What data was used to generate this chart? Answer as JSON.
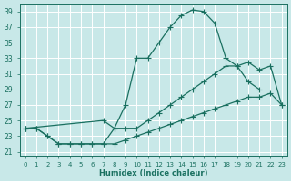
{
  "bg_color": "#c8e8e8",
  "line_color": "#1a7060",
  "xlabel": "Humidex (Indice chaleur)",
  "xlim": [
    -0.5,
    23.5
  ],
  "ylim": [
    20.5,
    40.0
  ],
  "xticks": [
    0,
    1,
    2,
    3,
    4,
    5,
    6,
    7,
    8,
    9,
    10,
    11,
    12,
    13,
    14,
    15,
    16,
    17,
    18,
    19,
    20,
    21,
    22,
    23
  ],
  "yticks": [
    21,
    23,
    25,
    27,
    29,
    31,
    33,
    35,
    37,
    39
  ],
  "line_top_x": [
    0,
    1,
    2,
    3,
    4,
    5,
    6,
    7,
    8,
    9,
    10,
    11,
    12,
    13,
    14,
    15,
    16,
    17,
    18,
    19,
    20,
    21
  ],
  "line_top_y": [
    24,
    24,
    23,
    22,
    22,
    22,
    22,
    22,
    24,
    27,
    33,
    33,
    35,
    37,
    38.5,
    39.2,
    39,
    37.5,
    33,
    32,
    30,
    29
  ],
  "line_mid_x": [
    0,
    7,
    8,
    9,
    10,
    11,
    12,
    13,
    14,
    15,
    16,
    17,
    18,
    19,
    20,
    21,
    22,
    23
  ],
  "line_mid_y": [
    24,
    25,
    24,
    24,
    24,
    25,
    26,
    27,
    28,
    29,
    30,
    31,
    32,
    32,
    32.5,
    31.5,
    32,
    27
  ],
  "line_bot_x": [
    0,
    1,
    2,
    3,
    4,
    5,
    6,
    7,
    8,
    9,
    10,
    11,
    12,
    13,
    14,
    15,
    16,
    17,
    18,
    19,
    20,
    21,
    22,
    23
  ],
  "line_bot_y": [
    24,
    24,
    23,
    22,
    22,
    22,
    22,
    22,
    22,
    22.5,
    23,
    23.5,
    24,
    24.5,
    25,
    25.5,
    26,
    26.5,
    27,
    27.5,
    28,
    28,
    28.5,
    27
  ]
}
